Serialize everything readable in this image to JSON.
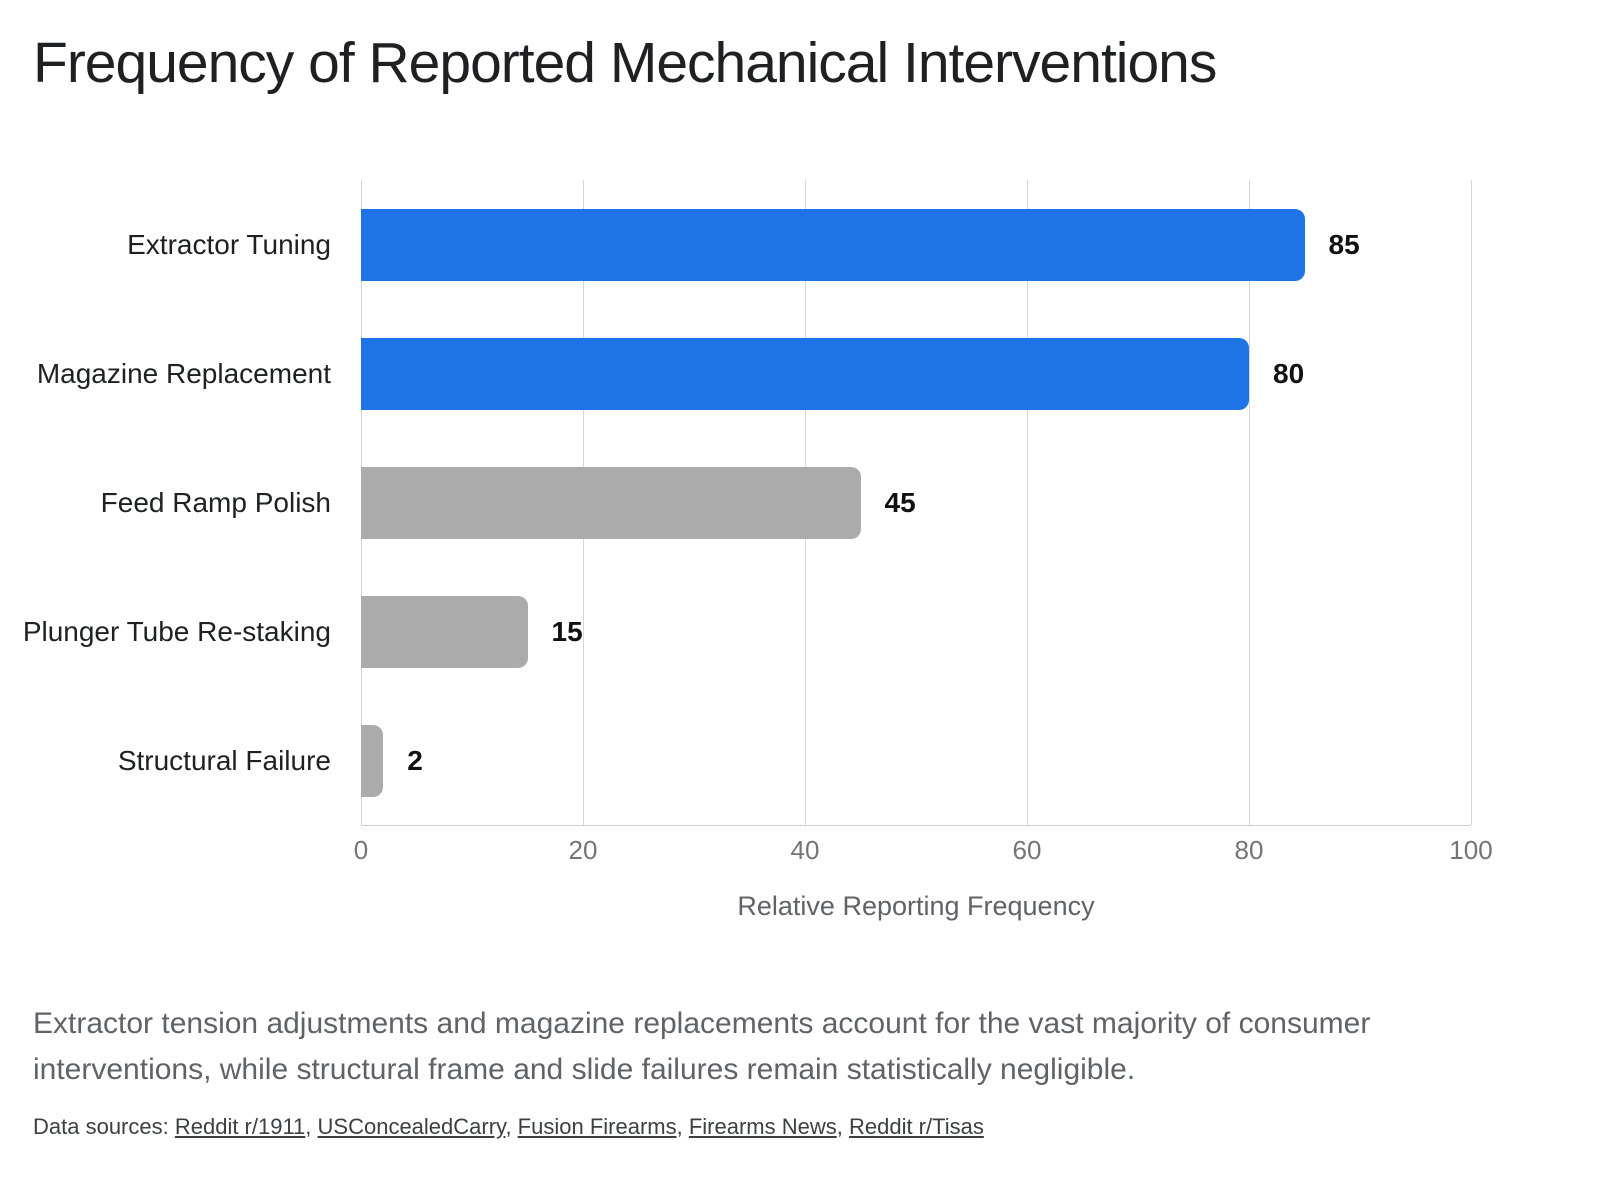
{
  "page": {
    "title": "Frequency of Reported Mechanical Interventions",
    "caption_line1": "Extractor tension adjustments and magazine replacements account for the vast majority of consumer",
    "caption_line2": "interventions, while structural frame and slide failures remain statistically negligible.",
    "sources_prefix": "Data sources:",
    "sources": [
      "Reddit r/1911",
      "USConcealedCarry",
      "Fusion Firearms",
      "Firearms News",
      "Reddit r/Tisas"
    ],
    "source_separator": ", "
  },
  "colors": {
    "accent_blue": "#1E74E6",
    "neutral_gray": "#ABABAB",
    "gridline": "#D6D6D6",
    "tick_text": "#757575",
    "axis_label_text": "#5F6368",
    "caption_text": "#5F6368",
    "value_text": "#111111"
  },
  "chart_data": {
    "type": "bar",
    "orientation": "horizontal",
    "title": "Frequency of Reported Mechanical Interventions",
    "categories": [
      "Extractor Tuning",
      "Magazine Replacement",
      "Feed Ramp Polish",
      "Plunger Tube Re-staking",
      "Structural Failure"
    ],
    "values": [
      85,
      80,
      45,
      15,
      2
    ],
    "bar_colors": [
      "#1E74E6",
      "#1E74E6",
      "#ABABAB",
      "#ABABAB",
      "#ABABAB"
    ],
    "value_labels": [
      "85",
      "80",
      "45",
      "15",
      "2"
    ],
    "xlabel": "Relative Reporting Frequency",
    "xlim": [
      0,
      100
    ],
    "xticks": [
      0,
      20,
      40,
      60,
      80,
      100
    ],
    "grid": "vertical-only",
    "legend": "none"
  }
}
